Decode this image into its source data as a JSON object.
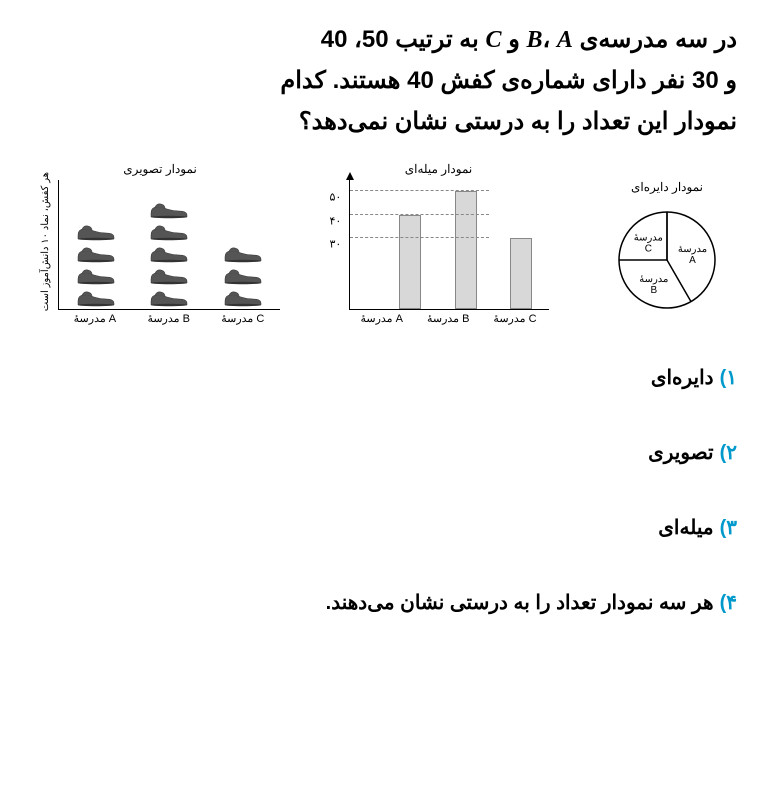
{
  "question": {
    "line1_pre": "در سه مدرسه‌ی ",
    "B": "B",
    "comma1": "، ",
    "A": "A",
    "mid": " و ",
    "C": "C",
    "line1_post": " به ترتیب ",
    "n1": "50",
    "c2": "، ",
    "n2": "40",
    "line2_pre": "و ",
    "n3": "30",
    "line2_mid": " نفر دارای شماره‌ی کفش ",
    "n4": "40",
    "line2_post": " هستند. کدام",
    "line3": "نمودار این تعداد را به درستی نشان نمی‌دهد؟"
  },
  "pictograph": {
    "title": "نمودار تصویری",
    "ylabel": "هر کفش، نماد ۱۰ دانش‌آموز است",
    "columns": [
      {
        "label": "مدرسهٔ A",
        "count": 4
      },
      {
        "label": "مدرسهٔ B",
        "count": 5
      },
      {
        "label": "مدرسهٔ C",
        "count": 3
      }
    ],
    "shoe_color": "#555555"
  },
  "barchart": {
    "title": "نمودار میله‌ای",
    "ymax": 55,
    "bars": [
      {
        "label": "مدرسهٔ A",
        "value": 40
      },
      {
        "label": "مدرسهٔ B",
        "value": 50
      },
      {
        "label": "مدرسهٔ C",
        "value": 30
      }
    ],
    "yticks": [
      {
        "value": 50,
        "label": "۵۰"
      },
      {
        "value": 40,
        "label": "۴۰"
      },
      {
        "value": 30,
        "label": "۳۰"
      }
    ],
    "bar_color": "#d8d8d8",
    "grid_color": "#888888"
  },
  "piechart": {
    "title": "نمودار دایره‌ای",
    "slices": [
      {
        "label": "مدرسهٔ A",
        "value": 50
      },
      {
        "label": "مدرسهٔ B",
        "value": 40
      },
      {
        "label": "مدرسهٔ C",
        "value": 30
      }
    ],
    "stroke": "#000000",
    "fill": "#ffffff"
  },
  "options": [
    {
      "num": "۱)",
      "text": "دایره‌ای"
    },
    {
      "num": "۲)",
      "text": "تصویری"
    },
    {
      "num": "۳)",
      "text": "میله‌ای"
    },
    {
      "num": "۴)",
      "text": "هر سه نمودار تعداد را به درستی نشان می‌دهند."
    }
  ]
}
